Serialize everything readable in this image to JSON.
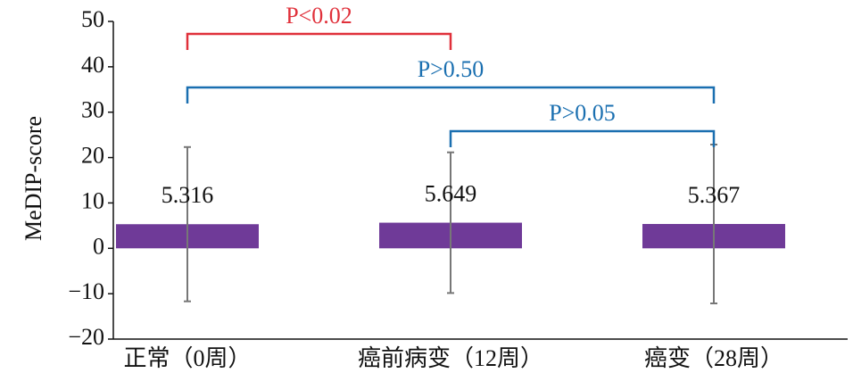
{
  "chart_data": {
    "type": "bar",
    "y_label": "MeDIP-score",
    "categories": [
      "正常（0周）",
      "癌前病变（12周）",
      "癌变（28周）"
    ],
    "values": [
      5.316,
      5.649,
      5.367
    ],
    "errors": [
      17,
      15.5,
      17.5
    ],
    "color": "#6f3a98",
    "error_color": "#777777",
    "ylim": [
      -20,
      50
    ],
    "yticks": [
      {
        "value": -20,
        "label": "−20"
      },
      {
        "value": -10,
        "label": "−10"
      },
      0,
      10,
      20,
      30,
      40,
      50
    ],
    "annotations": [
      {
        "text": "P<0.02",
        "from": 0,
        "to": 1,
        "color": "#e0303a"
      },
      {
        "text": "P>0.50",
        "from": 0,
        "to": 2,
        "color": "#1a6fb0"
      },
      {
        "text": "P>0.05",
        "from": 1,
        "to": 2,
        "color": "#1a6fb0"
      }
    ]
  }
}
